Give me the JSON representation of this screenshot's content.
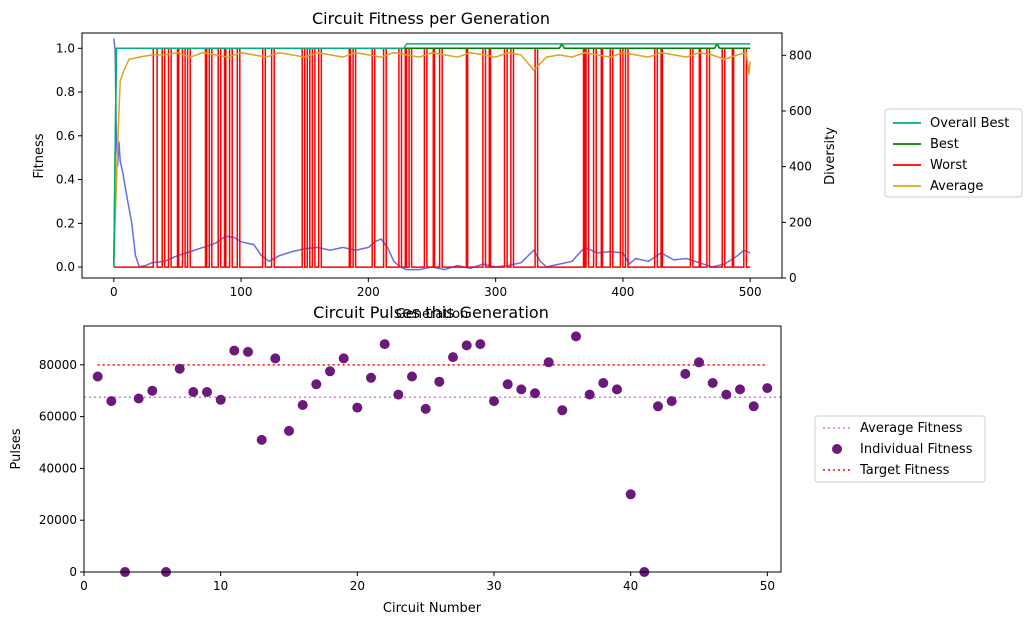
{
  "chart_data": [
    {
      "type": "line",
      "title": "Circuit Fitness per Generation",
      "xlabel": "Generation",
      "ylabel": "Fitness",
      "y2label": "Diversity",
      "xlim": [
        -25,
        525
      ],
      "ylim": [
        -0.05,
        1.07
      ],
      "y2lim": [
        0,
        880
      ],
      "xticks": [
        0,
        100,
        200,
        300,
        400,
        500
      ],
      "yticks": [
        0.0,
        0.2,
        0.4,
        0.6,
        0.8,
        1.0
      ],
      "y2ticks": [
        0,
        200,
        400,
        600,
        800
      ],
      "legend_position": "outside right",
      "legend": [
        {
          "label": "Overall Best",
          "color": "#00b07a"
        },
        {
          "label": "Best",
          "color": "#008000"
        },
        {
          "label": "Worst",
          "color": "#ff0000"
        },
        {
          "label": "Average",
          "color": "#daa520"
        }
      ],
      "diversity_color": "#6070e8",
      "series": [
        {
          "name": "Overall Best",
          "color": "#00b07a",
          "points": [
            [
              0,
              0.0
            ],
            [
              2,
              1.0
            ],
            [
              228,
              1.0
            ],
            [
              230,
              1.02
            ],
            [
              500,
              1.02
            ]
          ]
        },
        {
          "name": "Best",
          "color": "#008000",
          "points": [
            [
              0,
              0.0
            ],
            [
              2,
              1.0
            ],
            [
              350,
              1.0
            ],
            [
              352,
              1.02
            ],
            [
              354,
              1.0
            ],
            [
              472,
              1.0
            ],
            [
              474,
              1.02
            ],
            [
              476,
              1.0
            ],
            [
              500,
              1.0
            ]
          ]
        },
        {
          "name": "Worst",
          "color": "#ff0000",
          "spikes": [
            [
              31,
              34
            ],
            [
              38,
              40
            ],
            [
              43,
              45
            ],
            [
              50,
              51
            ],
            [
              54,
              56
            ],
            [
              58,
              60
            ],
            [
              72,
              73
            ],
            [
              75,
              77
            ],
            [
              82,
              84
            ],
            [
              87,
              88
            ],
            [
              91,
              93
            ],
            [
              97,
              99
            ],
            [
              117,
              119
            ],
            [
              124,
              126
            ],
            [
              148,
              150
            ],
            [
              152,
              154
            ],
            [
              156,
              158
            ],
            [
              161,
              163
            ],
            [
              185,
              186
            ],
            [
              188,
              190
            ],
            [
              203,
              205
            ],
            [
              212,
              214
            ],
            [
              224,
              226
            ],
            [
              229,
              230
            ],
            [
              232,
              234
            ],
            [
              244,
              246
            ],
            [
              251,
              252
            ],
            [
              256,
              258
            ],
            [
              277,
              278
            ],
            [
              290,
              292
            ],
            [
              295,
              296
            ],
            [
              307,
              309
            ],
            [
              312,
              314
            ],
            [
              331,
              333
            ],
            [
              369,
              370
            ],
            [
              371,
              373
            ],
            [
              377,
              379
            ],
            [
              383,
              384
            ],
            [
              390,
              392
            ],
            [
              398,
              400
            ],
            [
              402,
              404
            ],
            [
              425,
              427
            ],
            [
              430,
              431
            ],
            [
              453,
              455
            ],
            [
              460,
              461
            ],
            [
              466,
              468
            ],
            [
              478,
              480
            ],
            [
              486,
              487
            ],
            [
              495,
              497
            ]
          ]
        },
        {
          "name": "Average",
          "color": "#daa520",
          "points": [
            [
              0,
              0.02
            ],
            [
              3,
              0.55
            ],
            [
              5,
              0.85
            ],
            [
              8,
              0.9
            ],
            [
              12,
              0.95
            ],
            [
              20,
              0.96
            ],
            [
              30,
              0.97
            ],
            [
              40,
              0.97
            ],
            [
              50,
              0.98
            ],
            [
              60,
              0.96
            ],
            [
              70,
              0.98
            ],
            [
              80,
              0.97
            ],
            [
              90,
              0.96
            ],
            [
              100,
              0.98
            ],
            [
              110,
              0.97
            ],
            [
              120,
              0.96
            ],
            [
              130,
              0.98
            ],
            [
              140,
              0.97
            ],
            [
              150,
              0.96
            ],
            [
              160,
              0.98
            ],
            [
              170,
              0.97
            ],
            [
              180,
              0.96
            ],
            [
              190,
              0.98
            ],
            [
              200,
              0.97
            ],
            [
              210,
              0.96
            ],
            [
              220,
              0.98
            ],
            [
              230,
              0.97
            ],
            [
              240,
              0.96
            ],
            [
              250,
              0.98
            ],
            [
              260,
              0.97
            ],
            [
              270,
              0.96
            ],
            [
              280,
              0.98
            ],
            [
              290,
              0.97
            ],
            [
              300,
              0.96
            ],
            [
              310,
              0.98
            ],
            [
              320,
              0.97
            ],
            [
              330,
              0.9
            ],
            [
              340,
              0.96
            ],
            [
              350,
              0.97
            ],
            [
              360,
              0.96
            ],
            [
              370,
              0.98
            ],
            [
              380,
              0.97
            ],
            [
              390,
              0.96
            ],
            [
              400,
              0.98
            ],
            [
              410,
              0.97
            ],
            [
              420,
              0.96
            ],
            [
              430,
              0.98
            ],
            [
              440,
              0.97
            ],
            [
              450,
              0.96
            ],
            [
              460,
              0.98
            ],
            [
              470,
              0.97
            ],
            [
              480,
              0.95
            ],
            [
              490,
              0.97
            ],
            [
              497,
              0.98
            ],
            [
              499,
              0.88
            ],
            [
              500,
              0.94
            ]
          ]
        },
        {
          "name": "Diversity",
          "axis": "right",
          "color": "#6070e8",
          "points": [
            [
              0,
              860
            ],
            [
              1,
              820
            ],
            [
              2,
              500
            ],
            [
              3,
              400
            ],
            [
              4,
              490
            ],
            [
              5,
              420
            ],
            [
              7,
              380
            ],
            [
              10,
              300
            ],
            [
              14,
              200
            ],
            [
              17,
              80
            ],
            [
              20,
              40
            ],
            [
              25,
              45
            ],
            [
              30,
              55
            ],
            [
              40,
              60
            ],
            [
              50,
              80
            ],
            [
              60,
              95
            ],
            [
              70,
              110
            ],
            [
              80,
              125
            ],
            [
              88,
              150
            ],
            [
              95,
              145
            ],
            [
              100,
              130
            ],
            [
              110,
              120
            ],
            [
              116,
              80
            ],
            [
              122,
              60
            ],
            [
              130,
              80
            ],
            [
              140,
              95
            ],
            [
              150,
              105
            ],
            [
              160,
              110
            ],
            [
              170,
              100
            ],
            [
              180,
              110
            ],
            [
              190,
              100
            ],
            [
              200,
              110
            ],
            [
              205,
              130
            ],
            [
              210,
              140
            ],
            [
              215,
              110
            ],
            [
              220,
              60
            ],
            [
              225,
              40
            ],
            [
              230,
              30
            ],
            [
              240,
              30
            ],
            [
              250,
              40
            ],
            [
              260,
              30
            ],
            [
              270,
              45
            ],
            [
              280,
              35
            ],
            [
              290,
              50
            ],
            [
              300,
              40
            ],
            [
              310,
              45
            ],
            [
              320,
              55
            ],
            [
              330,
              100
            ],
            [
              335,
              60
            ],
            [
              340,
              40
            ],
            [
              350,
              50
            ],
            [
              360,
              60
            ],
            [
              370,
              110
            ],
            [
              380,
              90
            ],
            [
              390,
              95
            ],
            [
              400,
              90
            ],
            [
              405,
              50
            ],
            [
              410,
              70
            ],
            [
              420,
              60
            ],
            [
              430,
              90
            ],
            [
              440,
              65
            ],
            [
              450,
              70
            ],
            [
              460,
              55
            ],
            [
              470,
              40
            ],
            [
              480,
              50
            ],
            [
              490,
              80
            ],
            [
              495,
              100
            ],
            [
              500,
              90
            ]
          ]
        }
      ]
    },
    {
      "type": "scatter",
      "title": "Circuit Pulses this Generation",
      "xlabel": "Circuit Number",
      "ylabel": "Pulses",
      "xlim": [
        0,
        51
      ],
      "ylim": [
        0,
        95000
      ],
      "xticks": [
        0,
        10,
        20,
        30,
        40,
        50
      ],
      "yticks": [
        0,
        20000,
        40000,
        60000,
        80000
      ],
      "average_fitness": 67500,
      "target_fitness": 80000,
      "line_range": [
        1,
        50
      ],
      "legend_position": "outside right",
      "legend": [
        {
          "label": "Average Fitness",
          "color": "#e070e0",
          "style": "dotted-line"
        },
        {
          "label": "Individual Fitness",
          "color": "#6a1a7a",
          "style": "marker"
        },
        {
          "label": "Target Fitness",
          "color": "#ff0000",
          "style": "dotted-line"
        }
      ],
      "x": [
        1,
        2,
        3,
        4,
        5,
        6,
        7,
        8,
        9,
        10,
        11,
        12,
        13,
        14,
        15,
        16,
        17,
        18,
        19,
        20,
        21,
        22,
        23,
        24,
        25,
        26,
        27,
        28,
        29,
        30,
        31,
        32,
        33,
        34,
        35,
        36,
        37,
        38,
        39,
        40,
        41,
        42,
        43,
        44,
        45,
        46,
        47,
        48,
        49,
        50
      ],
      "y": [
        75500,
        66000,
        0,
        67000,
        70000,
        0,
        78500,
        69500,
        69500,
        66500,
        85500,
        85000,
        51000,
        82500,
        54500,
        64500,
        72500,
        77500,
        82500,
        63500,
        75000,
        88000,
        68500,
        75500,
        63000,
        73500,
        83000,
        87500,
        88000,
        66000,
        72500,
        70500,
        69000,
        81000,
        62500,
        91000,
        68500,
        73000,
        70500,
        30000,
        0,
        64000,
        66000,
        76500,
        81000,
        73000,
        68500,
        70500,
        64000,
        71000
      ]
    }
  ]
}
